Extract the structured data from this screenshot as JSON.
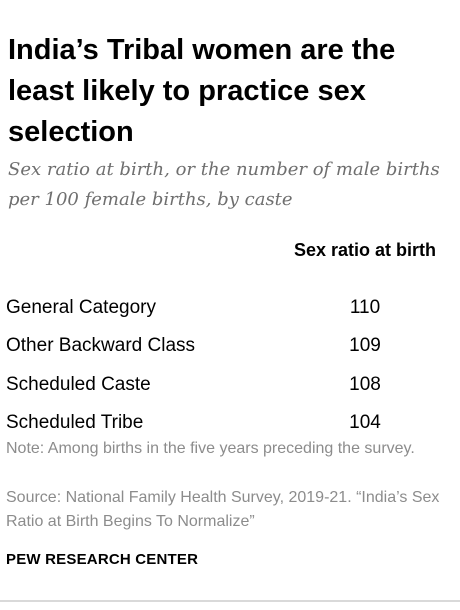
{
  "title": "India’s Tribal women are the least likely to practice sex selection",
  "subtitle": "Sex ratio at birth, or the number of male births per 100 female births, by caste",
  "note": "Note: Among births in the five years preceding the survey.",
  "source": "Source: National Family Health Survey, 2019-21. “India’s Sex Ratio at Birth Begins To Normalize”",
  "brand": "PEW RESEARCH CENTER",
  "colors": {
    "text": "#000000",
    "subtitle": "#6f6f6f",
    "footnote": "#8c8c8c"
  },
  "chart_data": {
    "type": "table",
    "columns": [
      "",
      "Sex ratio at birth"
    ],
    "rows": [
      {
        "label": "General Category",
        "value": "110"
      },
      {
        "label": "Other Backward Class",
        "value": "109"
      },
      {
        "label": "Scheduled Caste",
        "value": "108"
      },
      {
        "label": "Scheduled Tribe",
        "value": "104"
      }
    ]
  }
}
